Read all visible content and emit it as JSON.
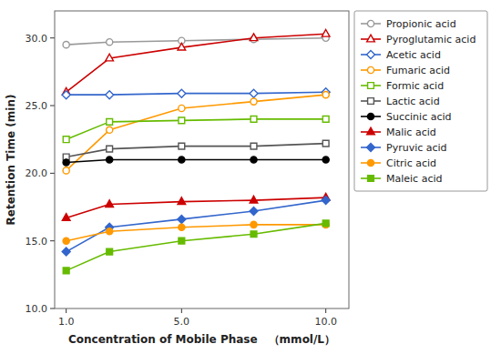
{
  "chart_data": {
    "type": "line",
    "x": [
      1.0,
      2.5,
      5.0,
      7.5,
      10.0
    ],
    "series": [
      {
        "name": "Propionic acid",
        "color": "#999999",
        "marker": "circle-open",
        "values": [
          29.5,
          29.7,
          29.8,
          29.9,
          30.0
        ]
      },
      {
        "name": "Pyroglutamic acid",
        "color": "#cc0000",
        "marker": "triangle-open",
        "values": [
          26.0,
          28.5,
          29.3,
          30.0,
          30.3
        ]
      },
      {
        "name": "Acetic acid",
        "color": "#3366cc",
        "marker": "diamond-open",
        "values": [
          25.8,
          25.8,
          25.9,
          25.9,
          26.0
        ]
      },
      {
        "name": "Fumaric acid",
        "color": "#ff9900",
        "marker": "circle-open",
        "values": [
          20.2,
          23.2,
          24.8,
          25.3,
          25.8
        ]
      },
      {
        "name": "Formic acid",
        "color": "#66bb00",
        "marker": "square-open",
        "values": [
          22.5,
          23.8,
          23.9,
          24.0,
          24.0
        ]
      },
      {
        "name": "Lactic acid",
        "color": "#555555",
        "marker": "square-open",
        "values": [
          21.2,
          21.8,
          22.0,
          22.0,
          22.2
        ]
      },
      {
        "name": "Succinic acid",
        "color": "#000000",
        "marker": "circle",
        "values": [
          20.8,
          21.0,
          21.0,
          21.0,
          21.0
        ]
      },
      {
        "name": "Malic acid",
        "color": "#cc0000",
        "marker": "triangle",
        "values": [
          16.7,
          17.7,
          17.9,
          18.0,
          18.2
        ]
      },
      {
        "name": "Pyruvic acid",
        "color": "#3366cc",
        "marker": "diamond",
        "values": [
          14.2,
          16.0,
          16.6,
          17.2,
          18.0
        ]
      },
      {
        "name": "Citric acid",
        "color": "#ff9900",
        "marker": "circle",
        "values": [
          15.0,
          15.7,
          16.0,
          16.2,
          16.2
        ]
      },
      {
        "name": "Maleic acid",
        "color": "#66bb00",
        "marker": "square",
        "values": [
          12.8,
          14.2,
          15.0,
          15.5,
          16.3
        ]
      }
    ],
    "x_label": "Concentration of Mobile Phase　（mmol/L）",
    "y_label": "Retention Time (min)",
    "xlim": [
      0.6,
      10.8
    ],
    "ylim": [
      10.0,
      32.0
    ],
    "xticks": [
      {
        "value": 1.0,
        "label": "1.0"
      },
      {
        "value": 5.0,
        "label": "5.0"
      },
      {
        "value": 10.0,
        "label": "10.0"
      }
    ],
    "yticks": [
      {
        "value": 10.0,
        "label": "10.0"
      },
      {
        "value": 15.0,
        "label": "15.0"
      },
      {
        "value": 20.0,
        "label": "20.0"
      },
      {
        "value": 25.0,
        "label": "25.0"
      },
      {
        "value": 30.0,
        "label": "30.0"
      }
    ],
    "legend": "right",
    "grid": false
  }
}
